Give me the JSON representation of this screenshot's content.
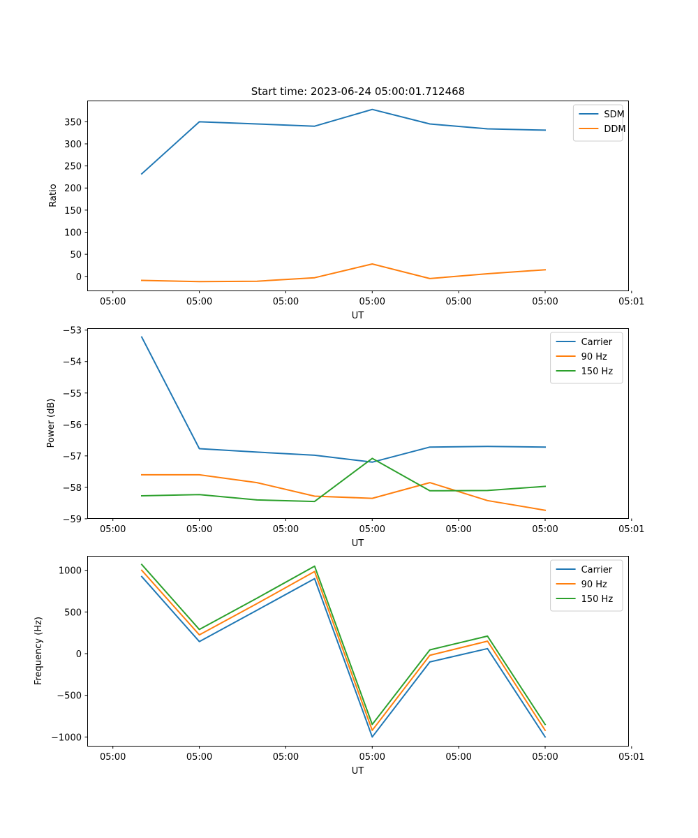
{
  "figure": {
    "title": "Start time: 2023-06-24 05:00:01.712468"
  },
  "colors": {
    "blue": "#1f77b4",
    "orange": "#ff7f0e",
    "green": "#2ca02c"
  },
  "chart_data": [
    {
      "type": "line",
      "title": "Start time: 2023-06-24 05:00:01.712468",
      "xlabel": "UT",
      "ylabel": "Ratio",
      "x_tick_labels": [
        "05:00",
        "05:00",
        "05:00",
        "05:00",
        "05:00",
        "05:00",
        "05:01"
      ],
      "x_tick_index_positions": [
        -0.5,
        1,
        2.5,
        4,
        5.5,
        7,
        8.5
      ],
      "x_index": [
        0,
        1,
        2,
        3,
        4,
        5,
        6,
        7
      ],
      "ylim": [
        -32,
        398
      ],
      "y_ticks": [
        0,
        50,
        100,
        150,
        200,
        250,
        300,
        350
      ],
      "legend_position": "upper right",
      "series": [
        {
          "name": "SDM",
          "color": "#1f77b4",
          "values": [
            232,
            350,
            345,
            340,
            378,
            345,
            334,
            331
          ]
        },
        {
          "name": "DDM",
          "color": "#ff7f0e",
          "values": [
            -9,
            -12,
            -11,
            -3,
            28,
            -5,
            6,
            15
          ]
        }
      ]
    },
    {
      "type": "line",
      "title": "",
      "xlabel": "UT",
      "ylabel": "Power (dB)",
      "x_tick_labels": [
        "05:00",
        "05:00",
        "05:00",
        "05:00",
        "05:00",
        "05:00",
        "05:01"
      ],
      "x_tick_index_positions": [
        -0.5,
        1,
        2.5,
        4,
        5.5,
        7,
        8.5
      ],
      "x_index": [
        0,
        1,
        2,
        3,
        4,
        5,
        6,
        7
      ],
      "ylim": [
        -58.98,
        -52.94
      ],
      "y_ticks": [
        -59,
        -58,
        -57,
        -56,
        -55,
        -54,
        -53
      ],
      "y_tick_labels": [
        "−59",
        "−58",
        "−57",
        "−56",
        "−55",
        "−54",
        "−53"
      ],
      "legend_position": "upper right",
      "series": [
        {
          "name": "Carrier",
          "color": "#1f77b4",
          "values": [
            -53.22,
            -56.77,
            -56.88,
            -56.98,
            -57.2,
            -56.72,
            -56.7,
            -56.72
          ]
        },
        {
          "name": "90 Hz",
          "color": "#ff7f0e",
          "values": [
            -57.6,
            -57.6,
            -57.85,
            -58.28,
            -58.35,
            -57.85,
            -58.42,
            -58.73
          ]
        },
        {
          "name": "150 Hz",
          "color": "#2ca02c",
          "values": [
            -58.27,
            -58.23,
            -58.4,
            -58.45,
            -57.08,
            -58.11,
            -58.1,
            -57.97
          ]
        }
      ]
    },
    {
      "type": "line",
      "title": "",
      "xlabel": "UT",
      "ylabel": "Frequency (Hz)",
      "x_tick_labels": [
        "05:00",
        "05:00",
        "05:00",
        "05:00",
        "05:00",
        "05:00",
        "05:01"
      ],
      "x_tick_index_positions": [
        -0.5,
        1,
        2.5,
        4,
        5.5,
        7,
        8.5
      ],
      "x_index": [
        0,
        1,
        2,
        3,
        4,
        5,
        6,
        7
      ],
      "ylim": [
        -1106,
        1173
      ],
      "y_ticks": [
        -1000,
        -500,
        0,
        500,
        1000
      ],
      "y_tick_labels": [
        "−1000",
        "−500",
        "0",
        "500",
        "1000"
      ],
      "legend_position": "upper right",
      "series": [
        {
          "name": "Carrier",
          "color": "#1f77b4",
          "values": [
            925,
            145,
            520,
            900,
            -1000,
            -100,
            60,
            -1000
          ]
        },
        {
          "name": "90 Hz",
          "color": "#ff7f0e",
          "values": [
            1000,
            225,
            600,
            985,
            -920,
            -20,
            150,
            -920
          ]
        },
        {
          "name": "150 Hz",
          "color": "#2ca02c",
          "values": [
            1070,
            290,
            665,
            1050,
            -850,
            45,
            210,
            -850
          ]
        }
      ]
    }
  ]
}
